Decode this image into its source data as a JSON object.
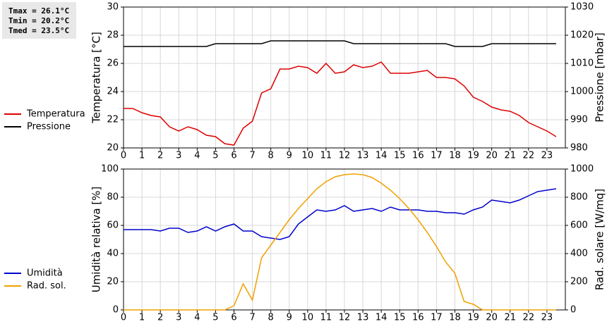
{
  "chart_data": [
    {
      "type": "line",
      "annotations": [
        "Tmax = 26.1°C",
        "Tmin = 20.2°C",
        "Tmed = 23.5°C"
      ],
      "ylabel": "Temperatura [°C]",
      "y2label": "Pressione [mbar]",
      "x": [
        0,
        0.5,
        1,
        1.5,
        2,
        2.5,
        3,
        3.5,
        4,
        4.5,
        5,
        5.5,
        6,
        6.5,
        7,
        7.5,
        8,
        8.5,
        9,
        9.5,
        10,
        10.5,
        11,
        11.5,
        12,
        12.5,
        13,
        13.5,
        14,
        14.5,
        15,
        15.5,
        16,
        16.5,
        17,
        17.5,
        18,
        18.5,
        19,
        19.5,
        20,
        20.5,
        21,
        21.5,
        22,
        22.5,
        23,
        23.5
      ],
      "xlim": [
        0,
        24
      ],
      "xticks": [
        0,
        1,
        2,
        3,
        4,
        5,
        6,
        7,
        8,
        9,
        10,
        11,
        12,
        13,
        14,
        15,
        16,
        17,
        18,
        19,
        20,
        21,
        22,
        23
      ],
      "ylim": [
        20,
        30
      ],
      "yticks": [
        20,
        22,
        24,
        26,
        28,
        30
      ],
      "y2lim": [
        980,
        1030
      ],
      "y2ticks": [
        980,
        990,
        1000,
        1010,
        1020,
        1030
      ],
      "grid": true,
      "series": [
        {
          "name": "Temperatura",
          "color": "#dd0000",
          "values": [
            22.8,
            22.8,
            22.5,
            22.3,
            22.2,
            21.5,
            21.2,
            21.5,
            21.3,
            20.9,
            20.8,
            20.3,
            20.2,
            21.4,
            21.9,
            23.9,
            24.2,
            25.6,
            25.6,
            25.8,
            25.7,
            25.3,
            26.0,
            25.3,
            25.4,
            25.9,
            25.7,
            25.8,
            26.1,
            25.3,
            25.3,
            25.3,
            25.4,
            25.5,
            25.0,
            25.0,
            24.9,
            24.4,
            23.6,
            23.3,
            22.9,
            22.7,
            22.6,
            22.3,
            21.8,
            21.5,
            21.2,
            20.8
          ]
        },
        {
          "name": "Pressione",
          "color": "#000000",
          "axis": "y2",
          "values": [
            1016,
            1016,
            1016,
            1016,
            1016,
            1016,
            1016,
            1016,
            1016,
            1016,
            1017,
            1017,
            1017,
            1017,
            1017,
            1017,
            1018,
            1018,
            1018,
            1018,
            1018,
            1018,
            1018,
            1018,
            1018,
            1017,
            1017,
            1017,
            1017,
            1017,
            1017,
            1017,
            1017,
            1017,
            1017,
            1017,
            1016,
            1016,
            1016,
            1016,
            1017,
            1017,
            1017,
            1017,
            1017,
            1017,
            1017,
            1017
          ]
        }
      ]
    },
    {
      "type": "line",
      "ylabel": "Umidità relativa [%]",
      "y2label": "Rad. solare [W/mq]",
      "x": [
        0,
        0.5,
        1,
        1.5,
        2,
        2.5,
        3,
        3.5,
        4,
        4.5,
        5,
        5.5,
        6,
        6.5,
        7,
        7.5,
        8,
        8.5,
        9,
        9.5,
        10,
        10.5,
        11,
        11.5,
        12,
        12.5,
        13,
        13.5,
        14,
        14.5,
        15,
        15.5,
        16,
        16.5,
        17,
        17.5,
        18,
        18.5,
        19,
        19.5,
        20,
        20.5,
        21,
        21.5,
        22,
        22.5,
        23,
        23.5
      ],
      "xlim": [
        0,
        24
      ],
      "xticks": [
        0,
        1,
        2,
        3,
        4,
        5,
        6,
        7,
        8,
        9,
        10,
        11,
        12,
        13,
        14,
        15,
        16,
        17,
        18,
        19,
        20,
        21,
        22,
        23
      ],
      "ylim": [
        0,
        100
      ],
      "yticks": [
        0,
        20,
        40,
        60,
        80,
        100
      ],
      "y2lim": [
        0,
        1000
      ],
      "y2ticks": [
        0,
        200,
        400,
        600,
        800,
        1000
      ],
      "grid": true,
      "series": [
        {
          "name": "Umidità",
          "color": "#0000cc",
          "values": [
            57,
            57,
            57,
            57,
            56,
            58,
            58,
            55,
            56,
            59,
            56,
            59,
            61,
            56,
            56,
            52,
            51,
            50,
            52,
            61,
            66,
            71,
            70,
            71,
            74,
            70,
            71,
            72,
            70,
            73,
            71,
            71,
            71,
            70,
            70,
            69,
            69,
            68,
            71,
            73,
            78,
            77,
            76,
            78,
            81,
            84,
            85,
            86
          ]
        },
        {
          "name": "Rad. sol.",
          "color": "#f0a000",
          "axis": "y2",
          "values": [
            0,
            0,
            0,
            0,
            0,
            0,
            0,
            0,
            0,
            0,
            0,
            0,
            30,
            185,
            70,
            370,
            460,
            550,
            640,
            720,
            790,
            860,
            910,
            945,
            960,
            965,
            960,
            940,
            900,
            850,
            790,
            720,
            640,
            550,
            450,
            340,
            260,
            60,
            40,
            0,
            0,
            0,
            0,
            0,
            0,
            0,
            0,
            0
          ]
        }
      ]
    }
  ]
}
